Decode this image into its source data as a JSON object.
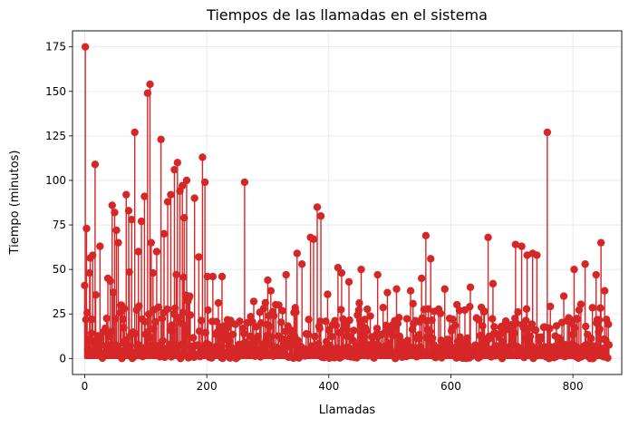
{
  "chart_data": {
    "type": "scatter",
    "style": "stem",
    "title": "Tiempos de las llamadas en el sistema",
    "xlabel": "Llamadas",
    "ylabel": "Tiempo (minutos)",
    "xlim": [
      -20,
      880
    ],
    "ylim": [
      -9,
      184
    ],
    "xticks": [
      0,
      200,
      400,
      600,
      800
    ],
    "yticks": [
      0,
      25,
      50,
      75,
      100,
      125,
      150,
      175
    ],
    "grid": true,
    "color": "#d62728",
    "n_points": 860,
    "baseline": 0,
    "series": [
      {
        "x": [
          0,
          1,
          3,
          5,
          8,
          12,
          17,
          25,
          31,
          38,
          45,
          49,
          52,
          55,
          60,
          68,
          72,
          77,
          82,
          88,
          93,
          98,
          103,
          107,
          109,
          112,
          118,
          125,
          130,
          136,
          141,
          147,
          152,
          156,
          160,
          163,
          167,
          172,
          180,
          187,
          193,
          197,
          201,
          210,
          225,
          262,
          300,
          305,
          318,
          330,
          348,
          356,
          370,
          375,
          381,
          387,
          398,
          415,
          421,
          433,
          453,
          480,
          496,
          511,
          534,
          552,
          559,
          567,
          590,
          632,
          661,
          669,
          706,
          716,
          725,
          734,
          741,
          758,
          785,
          802,
          820,
          838,
          846,
          852
        ],
        "y": [
          41,
          175,
          73,
          5,
          48,
          22,
          109,
          63,
          15,
          45,
          86,
          82,
          72,
          65,
          30,
          92,
          83,
          78,
          127,
          60,
          77,
          91,
          149,
          154,
          65,
          48,
          60,
          123,
          70,
          88,
          92,
          106,
          110,
          94,
          97,
          79,
          100,
          35,
          90,
          57,
          113,
          99,
          46,
          46,
          46,
          99,
          44,
          38,
          30,
          47,
          59,
          53,
          68,
          67,
          85,
          80,
          36,
          51,
          48,
          43,
          50,
          47,
          37,
          39,
          38,
          45,
          69,
          56,
          39,
          40,
          68,
          42,
          64,
          63,
          58,
          59,
          58,
          127,
          35,
          50,
          53,
          47,
          65,
          38
        ]
      }
    ]
  }
}
